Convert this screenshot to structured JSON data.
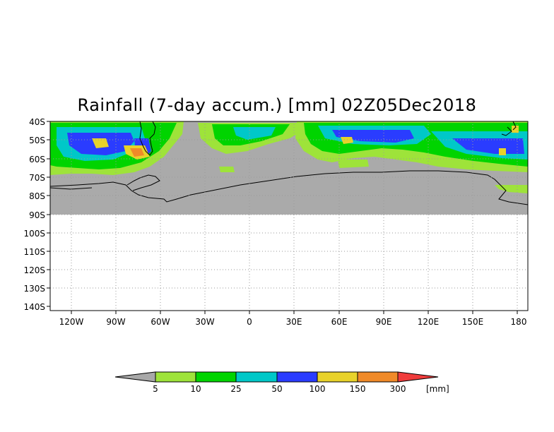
{
  "title": "Rainfall (7-day accum.) [mm] 02Z05Dec2018",
  "lat_labels": [
    "40S",
    "50S",
    "60S",
    "70S",
    "80S",
    "90S",
    "100S",
    "110S",
    "120S",
    "130S",
    "140S"
  ],
  "lon_labels": [
    "120W",
    "90W",
    "60W",
    "30W",
    "0",
    "30E",
    "60E",
    "90E",
    "120E",
    "150E",
    "180"
  ],
  "colorbar": {
    "labels": [
      "5",
      "10",
      "25",
      "50",
      "100",
      "150",
      "300"
    ],
    "unit": "[mm]",
    "colors": {
      "below": "#a8a8a8",
      "b5_10": "#9ee33a",
      "b10_25": "#00d400",
      "b25_50": "#00c8c8",
      "b50_100": "#2a3cff",
      "b100_150": "#e8d22a",
      "b150_300": "#f08a28",
      "above": "#f03c3c"
    }
  },
  "colors": {
    "no_rain": "#aaaaaa",
    "coast": "#000000",
    "grid": "#9a9a9a"
  }
}
